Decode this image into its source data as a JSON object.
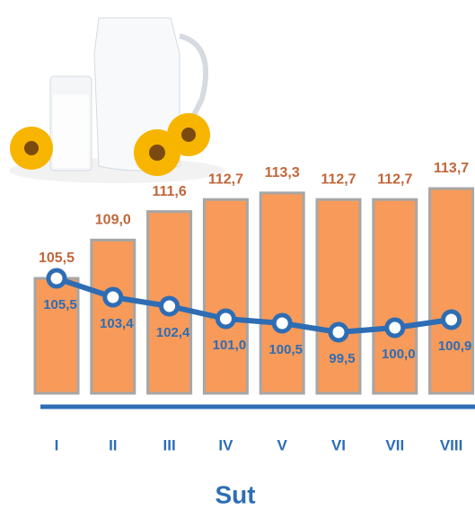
{
  "chart_data": {
    "type": "bar-line",
    "categories": [
      "I",
      "II",
      "III",
      "IV",
      "V",
      "VI",
      "VII",
      "VIII"
    ],
    "x_label": "Sut",
    "series": [
      {
        "type": "bar",
        "color": "#f79a5a",
        "values": [
          105.5,
          109.0,
          111.6,
          112.7,
          113.3,
          112.7,
          112.7,
          113.7
        ],
        "value_labels": [
          "105,5",
          "109,0",
          "111,6",
          "112,7",
          "113,3",
          "112,7",
          "112,7",
          "113,7"
        ]
      },
      {
        "type": "line",
        "color": "#2e6db4",
        "values": [
          105.5,
          103.4,
          102.4,
          101.0,
          100.5,
          99.5,
          100.0,
          100.9
        ],
        "value_labels": [
          "105,5",
          "103,4",
          "102,4",
          "101,0",
          "100,5",
          "99,5",
          "100,0",
          "100,9"
        ]
      }
    ]
  }
}
